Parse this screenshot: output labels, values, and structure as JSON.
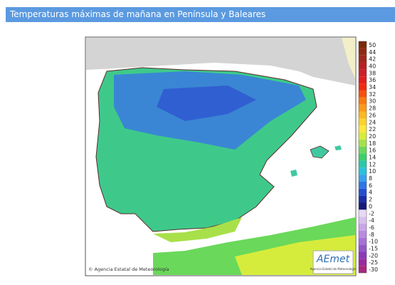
{
  "header": {
    "title": "Temperaturas máximas de mañana en Península y Baleares"
  },
  "map": {
    "credit": "© Agencia Estatal de Meteorología",
    "logo": {
      "name": "AEmet",
      "subtitle": "Agencia Estatal de Meteorología"
    }
  },
  "legend": {
    "items": [
      {
        "value": 50,
        "color": "#7a2a0a"
      },
      {
        "value": 44,
        "color": "#8e2a14"
      },
      {
        "value": 42,
        "color": "#a0281c"
      },
      {
        "value": 40,
        "color": "#b82222"
      },
      {
        "value": 38,
        "color": "#cc1f2a"
      },
      {
        "value": 36,
        "color": "#e01e1e"
      },
      {
        "value": 34,
        "color": "#f02a10"
      },
      {
        "value": 32,
        "color": "#f5500c"
      },
      {
        "value": 30,
        "color": "#f77a10"
      },
      {
        "value": 28,
        "color": "#f99a18"
      },
      {
        "value": 26,
        "color": "#fbb820"
      },
      {
        "value": 24,
        "color": "#fdd22a"
      },
      {
        "value": 22,
        "color": "#fbe83a"
      },
      {
        "value": 20,
        "color": "#d6ec3c"
      },
      {
        "value": 18,
        "color": "#a6e24a"
      },
      {
        "value": 16,
        "color": "#6ad85a"
      },
      {
        "value": 14,
        "color": "#3ccf6a"
      },
      {
        "value": 12,
        "color": "#2ac8a8"
      },
      {
        "value": 10,
        "color": "#28c2dc"
      },
      {
        "value": 8,
        "color": "#3aa0ec"
      },
      {
        "value": 6,
        "color": "#2f76e6"
      },
      {
        "value": 4,
        "color": "#2450d0"
      },
      {
        "value": 2,
        "color": "#1a2ea6"
      },
      {
        "value": 0,
        "color": "#141c78"
      },
      {
        "value": -2,
        "color": "#e8d8f4"
      },
      {
        "value": -4,
        "color": "#d8c0ee"
      },
      {
        "value": -6,
        "color": "#c8a6e8"
      },
      {
        "value": -8,
        "color": "#b88ae0"
      },
      {
        "value": -10,
        "color": "#a670d8"
      },
      {
        "value": -15,
        "color": "#9456c8"
      },
      {
        "value": -20,
        "color": "#8a3ab8"
      },
      {
        "value": -25,
        "color": "#9a2aa0"
      },
      {
        "value": -30,
        "color": "#a8287e"
      }
    ]
  }
}
